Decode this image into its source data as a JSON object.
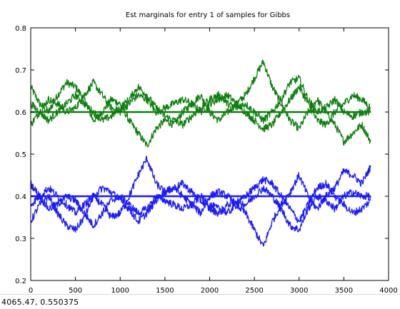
{
  "status": {
    "coords": "4065.47,  0.550375"
  },
  "chart_data": {
    "type": "line",
    "title": "Est marginals for entry 1 of samples for Gibbs",
    "xlabel": "",
    "ylabel": "",
    "xlim": [
      0,
      4000
    ],
    "ylim": [
      0.2,
      0.8
    ],
    "xticks": [
      0,
      500,
      1000,
      1500,
      2000,
      2500,
      3000,
      3500,
      4000
    ],
    "yticks": [
      0.2,
      0.3,
      0.4,
      0.5,
      0.6,
      0.7,
      0.8
    ],
    "xtick_labels": [
      "0",
      "500",
      "1000",
      "1500",
      "2000",
      "2500",
      "3000",
      "3500",
      "4000"
    ],
    "ytick_labels": [
      "0.2",
      "0.3",
      "0.4",
      "0.5",
      "0.6",
      "0.7",
      "0.8"
    ],
    "grid": false,
    "legend": "none",
    "colors": {
      "green": "#0f7f0f",
      "blue": "#1a1aff"
    },
    "series": [
      {
        "color": "#0f7f0f",
        "x": [
          0,
          100,
          200,
          300,
          400,
          500,
          600,
          700,
          800,
          900,
          1000,
          1100,
          1200,
          1300,
          1400,
          1500,
          1600,
          1700,
          1800,
          1900,
          2000,
          2100,
          2200,
          2300,
          2400,
          2500,
          2600,
          2700,
          2800,
          2900,
          3000,
          3100,
          3200,
          3300,
          3400,
          3500,
          3600,
          3700,
          3800
        ],
        "y": [
          0.66,
          0.62,
          0.6,
          0.64,
          0.67,
          0.66,
          0.63,
          0.58,
          0.6,
          0.63,
          0.62,
          0.58,
          0.55,
          0.52,
          0.56,
          0.58,
          0.57,
          0.6,
          0.62,
          0.64,
          0.6,
          0.58,
          0.6,
          0.62,
          0.64,
          0.68,
          0.72,
          0.66,
          0.62,
          0.58,
          0.56,
          0.6,
          0.63,
          0.6,
          0.57,
          0.53,
          0.55,
          0.57,
          0.53
        ]
      },
      {
        "color": "#0f7f0f",
        "x": [
          0,
          100,
          200,
          300,
          400,
          500,
          600,
          700,
          800,
          900,
          1000,
          1100,
          1200,
          1300,
          1400,
          1500,
          1600,
          1700,
          1800,
          1900,
          2000,
          2100,
          2200,
          2300,
          2400,
          2500,
          2600,
          2700,
          2800,
          2900,
          3000,
          3100,
          3200,
          3300,
          3400,
          3500,
          3600,
          3700,
          3800
        ],
        "y": [
          0.57,
          0.6,
          0.63,
          0.62,
          0.6,
          0.61,
          0.64,
          0.67,
          0.64,
          0.61,
          0.6,
          0.62,
          0.64,
          0.63,
          0.6,
          0.61,
          0.62,
          0.63,
          0.62,
          0.6,
          0.62,
          0.63,
          0.64,
          0.62,
          0.6,
          0.58,
          0.56,
          0.57,
          0.6,
          0.63,
          0.66,
          0.62,
          0.58,
          0.57,
          0.6,
          0.62,
          0.64,
          0.63,
          0.61
        ]
      },
      {
        "color": "#0f7f0f",
        "x": [
          0,
          100,
          200,
          300,
          400,
          500,
          600,
          700,
          800,
          900,
          1000,
          1100,
          1200,
          1300,
          1400,
          1500,
          1600,
          1700,
          1800,
          1900,
          2000,
          2100,
          2200,
          2300,
          2400,
          2500,
          2600,
          2700,
          2800,
          2900,
          3000,
          3100,
          3200,
          3300,
          3400,
          3500,
          3600,
          3700,
          3800
        ],
        "y": [
          0.62,
          0.6,
          0.58,
          0.6,
          0.62,
          0.64,
          0.62,
          0.6,
          0.58,
          0.59,
          0.61,
          0.63,
          0.66,
          0.64,
          0.61,
          0.59,
          0.58,
          0.57,
          0.59,
          0.61,
          0.63,
          0.64,
          0.62,
          0.61,
          0.62,
          0.6,
          0.58,
          0.6,
          0.63,
          0.67,
          0.68,
          0.63,
          0.6,
          0.61,
          0.63,
          0.6,
          0.59,
          0.6,
          0.6
        ]
      },
      {
        "color": "#0f7f0f",
        "x": [
          0,
          3800
        ],
        "y": [
          0.6,
          0.6
        ]
      },
      {
        "color": "#1a1aff",
        "x": [
          0,
          100,
          200,
          300,
          400,
          500,
          600,
          700,
          800,
          900,
          1000,
          1100,
          1200,
          1300,
          1400,
          1500,
          1600,
          1700,
          1800,
          1900,
          2000,
          2100,
          2200,
          2300,
          2400,
          2500,
          2600,
          2700,
          2800,
          2900,
          3000,
          3100,
          3200,
          3300,
          3400,
          3500,
          3600,
          3700,
          3800
        ],
        "y": [
          0.34,
          0.38,
          0.4,
          0.36,
          0.33,
          0.32,
          0.35,
          0.4,
          0.38,
          0.35,
          0.36,
          0.4,
          0.45,
          0.49,
          0.43,
          0.41,
          0.42,
          0.4,
          0.38,
          0.36,
          0.4,
          0.41,
          0.4,
          0.38,
          0.36,
          0.32,
          0.28,
          0.34,
          0.38,
          0.41,
          0.45,
          0.4,
          0.37,
          0.4,
          0.42,
          0.46,
          0.45,
          0.43,
          0.47
        ]
      },
      {
        "color": "#1a1aff",
        "x": [
          0,
          100,
          200,
          300,
          400,
          500,
          600,
          700,
          800,
          900,
          1000,
          1100,
          1200,
          1300,
          1400,
          1500,
          1600,
          1700,
          1800,
          1900,
          2000,
          2100,
          2200,
          2300,
          2400,
          2500,
          2600,
          2700,
          2800,
          2900,
          3000,
          3100,
          3200,
          3300,
          3400,
          3500,
          3600,
          3700,
          3800
        ],
        "y": [
          0.43,
          0.4,
          0.37,
          0.38,
          0.4,
          0.39,
          0.36,
          0.33,
          0.36,
          0.39,
          0.4,
          0.38,
          0.36,
          0.37,
          0.4,
          0.39,
          0.38,
          0.37,
          0.38,
          0.4,
          0.38,
          0.37,
          0.36,
          0.38,
          0.4,
          0.42,
          0.44,
          0.43,
          0.4,
          0.37,
          0.34,
          0.38,
          0.42,
          0.43,
          0.4,
          0.38,
          0.36,
          0.37,
          0.39
        ]
      },
      {
        "color": "#1a1aff",
        "x": [
          0,
          100,
          200,
          300,
          400,
          500,
          600,
          700,
          800,
          900,
          1000,
          1100,
          1200,
          1300,
          1400,
          1500,
          1600,
          1700,
          1800,
          1900,
          2000,
          2100,
          2200,
          2300,
          2400,
          2500,
          2600,
          2700,
          2800,
          2900,
          3000,
          3100,
          3200,
          3300,
          3400,
          3500,
          3600,
          3700,
          3800
        ],
        "y": [
          0.38,
          0.4,
          0.42,
          0.4,
          0.38,
          0.36,
          0.38,
          0.4,
          0.42,
          0.41,
          0.39,
          0.37,
          0.34,
          0.36,
          0.39,
          0.41,
          0.42,
          0.43,
          0.41,
          0.39,
          0.37,
          0.36,
          0.38,
          0.39,
          0.38,
          0.4,
          0.42,
          0.4,
          0.37,
          0.33,
          0.32,
          0.37,
          0.4,
          0.39,
          0.37,
          0.4,
          0.41,
          0.4,
          0.4
        ]
      },
      {
        "color": "#1a1aff",
        "x": [
          0,
          3800
        ],
        "y": [
          0.4,
          0.4
        ]
      }
    ]
  }
}
